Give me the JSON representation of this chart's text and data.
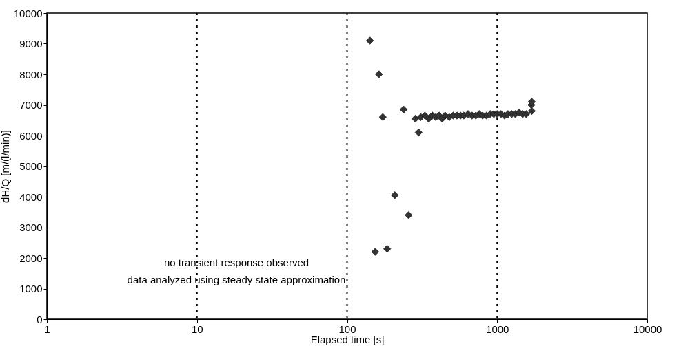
{
  "chart_data": {
    "type": "scatter",
    "xlabel": "Elapsed time  [s]",
    "ylabel": "dH/Q  [m/(l/min)]",
    "annotations": [
      "no transient response observed",
      "data analyzed using steady state approximation"
    ],
    "log": "x",
    "xlim": [
      1,
      10000
    ],
    "xticks": [
      1,
      10,
      100,
      1000,
      10000
    ],
    "ylim": [
      0,
      10000
    ],
    "yticks": [
      0,
      1000,
      2000,
      3000,
      4000,
      5000,
      6000,
      7000,
      8000,
      9000,
      10000
    ],
    "grid": "x",
    "marker": "diamond",
    "series": [
      {
        "color": "#333333",
        "x": [
          142,
          154,
          163,
          173,
          185,
          208,
          238,
          257,
          285,
          300,
          310,
          330,
          350,
          370,
          390,
          410,
          430,
          450,
          480,
          510,
          540,
          570,
          600,
          640,
          680,
          720,
          760,
          800,
          850,
          900,
          950,
          1000,
          1060,
          1120,
          1180,
          1250,
          1320,
          1400,
          1480,
          1560,
          1690,
          1700,
          1700
        ],
        "values": [
          9100,
          2200,
          8000,
          6600,
          2300,
          4050,
          6850,
          3400,
          6550,
          6100,
          6600,
          6650,
          6550,
          6650,
          6600,
          6650,
          6550,
          6650,
          6600,
          6650,
          6650,
          6650,
          6650,
          6700,
          6650,
          6650,
          6700,
          6650,
          6650,
          6700,
          6700,
          6700,
          6700,
          6650,
          6700,
          6700,
          6700,
          6750,
          6700,
          6700,
          7000,
          7100,
          6800
        ]
      }
    ]
  }
}
